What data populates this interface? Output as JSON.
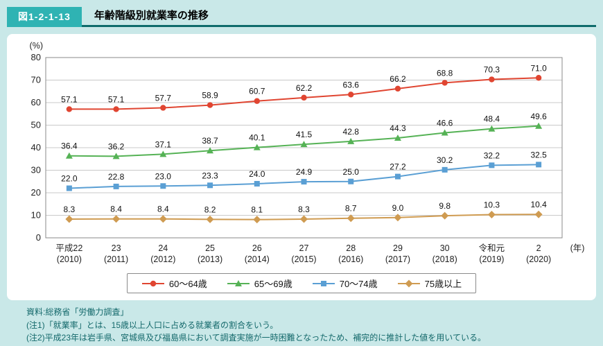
{
  "header": {
    "figure_label": "図1-2-1-13",
    "title": "年齢階級別就業率の推移"
  },
  "chart_data": {
    "type": "line",
    "title": "年齢階級別就業率の推移",
    "unit_label": "(%)",
    "x_axis_suffix": "(年)",
    "ylim": [
      0,
      80
    ],
    "ytick_interval": 10,
    "grid": true,
    "legend_position": "bottom",
    "categories": [
      {
        "era": "平成22",
        "year": "(2010)"
      },
      {
        "era": "23",
        "year": "(2011)"
      },
      {
        "era": "24",
        "year": "(2012)"
      },
      {
        "era": "25",
        "year": "(2013)"
      },
      {
        "era": "26",
        "year": "(2014)"
      },
      {
        "era": "27",
        "year": "(2015)"
      },
      {
        "era": "28",
        "year": "(2016)"
      },
      {
        "era": "29",
        "year": "(2017)"
      },
      {
        "era": "30",
        "year": "(2018)"
      },
      {
        "era": "令和元",
        "year": "(2019)"
      },
      {
        "era": "2",
        "year": "(2020)"
      }
    ],
    "series": [
      {
        "name": "60〜64歳",
        "marker": "circle",
        "color": "#e04531",
        "values": [
          57.1,
          57.1,
          57.7,
          58.9,
          60.7,
          62.2,
          63.6,
          66.2,
          68.8,
          70.3,
          71.0
        ]
      },
      {
        "name": "65〜69歳",
        "marker": "triangle",
        "color": "#55b255",
        "values": [
          36.4,
          36.2,
          37.1,
          38.7,
          40.1,
          41.5,
          42.8,
          44.3,
          46.6,
          48.4,
          49.6
        ]
      },
      {
        "name": "70〜74歳",
        "marker": "square",
        "color": "#5a9fd4",
        "values": [
          22.0,
          22.8,
          23.0,
          23.3,
          24.0,
          24.9,
          25.0,
          27.2,
          30.2,
          32.2,
          32.5
        ]
      },
      {
        "name": "75歳以上",
        "marker": "diamond",
        "color": "#cf9b51",
        "values": [
          8.3,
          8.4,
          8.4,
          8.2,
          8.1,
          8.3,
          8.7,
          9.0,
          9.8,
          10.3,
          10.4
        ]
      }
    ]
  },
  "notes": {
    "source": "資料:総務省「労働力調査」",
    "note1": "(注1)「就業率」とは、15歳以上人口に占める就業者の割合をいう。",
    "note2": "(注2)平成23年は岩手県、宮城県及び福島県において調査実施が一時困難となったため、補完的に推計した値を用いている。"
  },
  "colors": {
    "background": "#c9e8e8",
    "figure_label_bg": "#2fb3b3",
    "title_underline": "#0e6b6b",
    "notes_text": "#14696b",
    "grid_line": "#c9c9c9",
    "plot_border": "#8a8a8a"
  }
}
